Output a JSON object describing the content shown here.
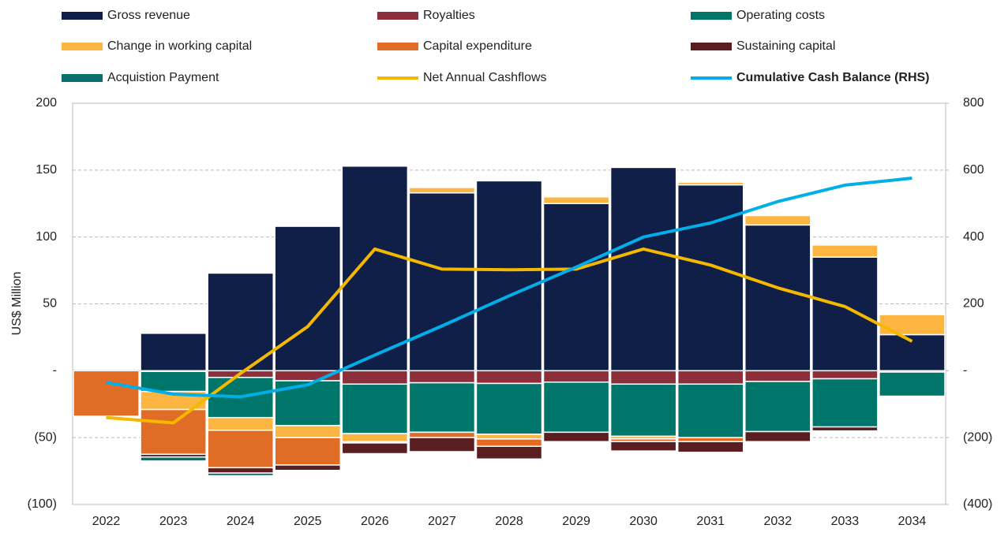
{
  "chart_data": {
    "type": "bar",
    "y_label": "US$ Million",
    "categories": [
      "2022",
      "2023",
      "2024",
      "2025",
      "2026",
      "2027",
      "2028",
      "2029",
      "2030",
      "2031",
      "2032",
      "2033",
      "2034"
    ],
    "series": [
      {
        "name": "Gross revenue",
        "color": "#0f1f47",
        "values": [
          0,
          28,
          73,
          108,
          153,
          133,
          142,
          125,
          152,
          139,
          109,
          85,
          27
        ]
      },
      {
        "name": "Royalties",
        "color": "#8c2f3b",
        "values": [
          0,
          -0.5,
          -5,
          -7.5,
          -10,
          -9,
          -9.5,
          -8.5,
          -10,
          -10,
          -8,
          -6,
          -1
        ]
      },
      {
        "name": "Operating costs",
        "color": "#00756a",
        "values": [
          0,
          -15,
          -30,
          -33.5,
          -37,
          -37,
          -38,
          -37.5,
          -39,
          -40,
          -37.5,
          -36,
          -18
        ]
      },
      {
        "name": "Change in working capital",
        "color": "#fbb540",
        "values": [
          0,
          -13.5,
          -9.5,
          -9,
          -6,
          4,
          -3.5,
          5,
          -2,
          2,
          7,
          9,
          15
        ]
      },
      {
        "name": "Capital expenditure",
        "color": "#e06c26",
        "values": [
          -34,
          -33.5,
          -28,
          -20.5,
          -1,
          -4,
          -5.5,
          0,
          -2,
          -3,
          0,
          0,
          0
        ]
      },
      {
        "name": "Sustaining capital",
        "color": "#5a1e20",
        "values": [
          0,
          -2,
          -4,
          -4,
          -8,
          -10.5,
          -9.5,
          -7,
          -7,
          -8,
          -7.5,
          -3,
          0
        ]
      },
      {
        "name": "Acquistion Payment",
        "color": "#0a6f6a",
        "values": [
          0,
          -3,
          -2,
          0,
          0,
          0,
          0,
          0,
          0,
          0,
          0,
          0,
          0
        ]
      },
      {
        "name": "Net Annual Cashflows",
        "type": "line",
        "color": "#f5b800",
        "values": [
          -35,
          -39,
          -2,
          33,
          91,
          76,
          75.5,
          76,
          91,
          79,
          62,
          48,
          22
        ]
      },
      {
        "name": "Cumulative Cash Balance (RHS)",
        "type": "line",
        "axis": "y2",
        "color": "#00aee8",
        "values": [
          -35,
          -70,
          -78,
          -42,
          47,
          134,
          224,
          310,
          400,
          442,
          506,
          555,
          576
        ]
      }
    ],
    "ylim": [
      -100,
      200
    ],
    "yticks": [
      {
        "value": -100,
        "label": "(100)"
      },
      {
        "value": -50,
        "label": "(50)"
      },
      {
        "value": 0,
        "label": "-"
      },
      50,
      100,
      150,
      200
    ],
    "y2lim": [
      -400,
      800
    ],
    "y2ticks": [
      {
        "value": -400,
        "label": "(400)"
      },
      {
        "value": -200,
        "label": "(200)"
      },
      {
        "value": 0,
        "label": "-"
      },
      200,
      400,
      600,
      800
    ],
    "grid": true
  }
}
